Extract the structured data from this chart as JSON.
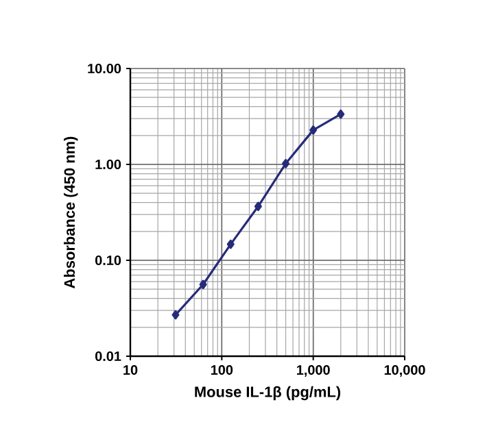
{
  "chart_data": {
    "type": "line",
    "xlabel": "Mouse IL-1β (pg/mL)",
    "ylabel": "Absorbance (450 nm)",
    "x": [
      31.25,
      62.5,
      125,
      250,
      500,
      1000,
      2000
    ],
    "series": [
      {
        "color": "#262b7a",
        "values": [
          0.027,
          0.056,
          0.147,
          0.365,
          1.02,
          2.28,
          3.34
        ]
      }
    ],
    "xlim": [
      10,
      10000
    ],
    "ylim": [
      0.01,
      10
    ],
    "xticks": [
      10,
      100,
      {
        "value": 1000,
        "label": "1,000"
      },
      {
        "value": 10000,
        "label": "10,000"
      }
    ],
    "yticks": [
      {
        "value": 0.01,
        "label": "0.01"
      },
      {
        "value": 0.1,
        "label": "0.10"
      },
      {
        "value": 1,
        "label": "1.00"
      },
      {
        "value": 10,
        "label": "10.00"
      }
    ],
    "log": "xy",
    "grid": true,
    "marker": "diamond",
    "line_style": "solid"
  }
}
